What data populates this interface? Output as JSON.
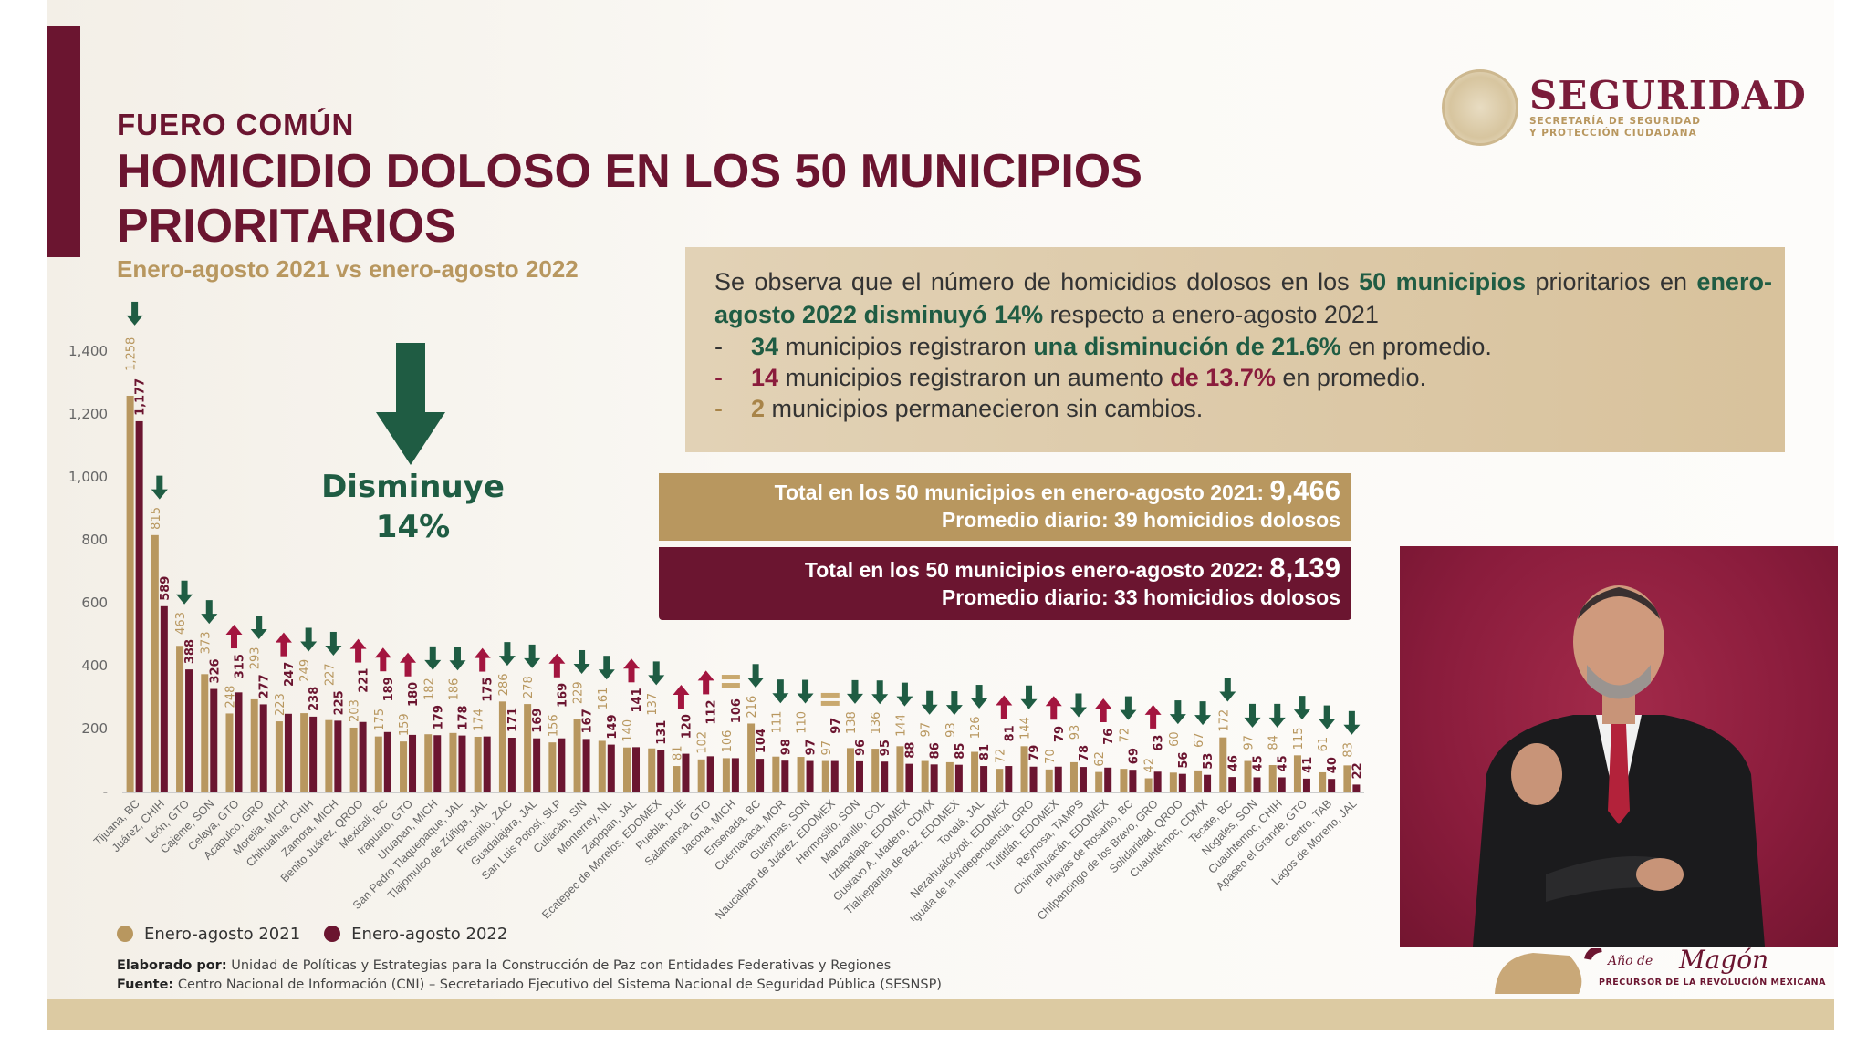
{
  "header": {
    "kicker": "FUERO COMÚN",
    "title": "HOMICIDIO DOLOSO EN LOS 50 MUNICIPIOS PRIORITARIOS",
    "subtitle": "Enero-agosto 2021 vs enero-agosto 2022"
  },
  "logo": {
    "name": "SEGURIDAD",
    "sub1": "SECRETARÍA DE SEGURIDAD",
    "sub2": "Y PROTECCIÓN CIUDADANA"
  },
  "summary": {
    "p1": "Se observa que el número de homicidios dolosos en los",
    "p1b": "50 municipios",
    "p2": "prioritarios en",
    "p2b": "enero-agosto 2022",
    "p2c": "disminuyó 14%",
    "p2d": "respecto a enero-agosto 2021",
    "items": [
      {
        "num": "34",
        "text": "municipios registraron",
        "hl": "una disminución de 21.6%",
        "tail": "en promedio."
      },
      {
        "num": "14",
        "text": "municipios registraron un aumento",
        "hl": "de 13.7%",
        "tail": "en promedio."
      },
      {
        "num": "2",
        "text": "municipios permanecieron sin cambios.",
        "hl": "",
        "tail": ""
      }
    ],
    "dash": "-"
  },
  "totals": {
    "t2021_label": "Total en los 50 municipios en enero-agosto 2021:",
    "t2021_value": "9,466",
    "t2021_daily": "Promedio diario: 39 homicidios dolosos",
    "t2022_label": "Total en los 50 municipios enero-agosto 2022:",
    "t2022_value": "8,139",
    "t2022_daily": "Promedio diario: 33 homicidios dolosos"
  },
  "callout": {
    "label": "Disminuye",
    "value": "14%"
  },
  "colors": {
    "y2021": "#b8975f",
    "y2022": "#6b1530",
    "down": "#1f5c43",
    "up": "#a3153f",
    "equal": "#c9a96e"
  },
  "chart_data": {
    "type": "bar",
    "ylim": [
      0,
      1400
    ],
    "yticks": [
      "-",
      "200",
      "400",
      "600",
      "800",
      "1,000",
      "1,200",
      "1,400"
    ],
    "categories": [
      "Tijuana, BC",
      "Juárez, CHIH",
      "León, GTO",
      "Cajeme, SON",
      "Celaya, GTO",
      "Acapulco, GRO",
      "Morelia, MICH",
      "Chihuahua, CHIH",
      "Zamora, MICH",
      "Benito Juárez, QROO",
      "Mexicali, BC",
      "Irapuato, GTO",
      "Uruapan, MICH",
      "San Pedro Tlaquepaque, JAL",
      "Tlajomulco de Zúñiga, JAL",
      "Fresnillo, ZAC",
      "Guadalajara, JAL",
      "San Luis Potosí, SLP",
      "Culiacán, SIN",
      "Monterrey, NL",
      "Zapopan, JAL",
      "Ecatepec de Morelos, EDOMEX",
      "Puebla, PUE",
      "Salamanca, GTO",
      "Jacona, MICH",
      "Ensenada, BC",
      "Cuernavaca, MOR",
      "Guaymas, SON",
      "Naucalpan de Juárez, EDOMEX",
      "Hermosillo, SON",
      "Manzanillo, COL",
      "Iztapalapa, EDOMEX",
      "Gustavo A. Madero, CDMX",
      "Tlalnepantla de Baz, EDOMEX",
      "Tonalá, JAL",
      "Nezahualcóyotl, EDOMEX",
      "Iguala de la Independencia, GRO",
      "Tultitlán, EDOMEX",
      "Reynosa, TAMPS",
      "Chimalhuacán, EDOMEX",
      "Playas de Rosarito, BC",
      "Chilpancingo de los Bravo, GRO",
      "Solidaridad, QROO",
      "Cuauhtémoc, CDMX",
      "Tecate, BC",
      "Nogales, SON",
      "Cuauhtémoc, CHIH",
      "Apaseo el Grande, GTO",
      "Centro, TAB",
      "Lagos de Moreno, JAL"
    ],
    "series": [
      {
        "name": "Enero-agosto 2021",
        "values": [
          1258,
          815,
          463,
          373,
          248,
          293,
          223,
          249,
          227,
          203,
          175,
          159,
          182,
          186,
          174,
          286,
          278,
          156,
          229,
          161,
          140,
          137,
          81,
          102,
          106,
          216,
          111,
          110,
          97,
          138,
          136,
          144,
          97,
          93,
          126,
          72,
          144,
          70,
          93,
          62,
          72,
          42,
          60,
          67,
          172,
          97,
          84,
          115,
          61,
          83
        ],
        "labels": [
          "1,258",
          "815",
          "463",
          "373",
          "248",
          "293",
          "223",
          "249",
          "227",
          "203",
          "175",
          "159",
          "182",
          "186",
          "174",
          "286",
          "278",
          "156",
          "229",
          "161",
          "140",
          "137",
          "81",
          "102",
          "106",
          "216",
          "111",
          "110",
          "97",
          "138",
          "136",
          "144",
          "97",
          "93",
          "126",
          "72",
          "144",
          "70",
          "93",
          "62",
          "72",
          "42",
          "60",
          "67",
          "172",
          "97",
          "84",
          "115",
          "61",
          "83"
        ]
      },
      {
        "name": "Enero-agosto 2022",
        "values": [
          1177,
          589,
          388,
          326,
          315,
          277,
          247,
          238,
          225,
          221,
          189,
          180,
          179,
          178,
          175,
          171,
          169,
          169,
          167,
          149,
          141,
          131,
          120,
          112,
          106,
          104,
          98,
          97,
          97,
          96,
          95,
          88,
          86,
          85,
          81,
          81,
          79,
          79,
          78,
          76,
          69,
          63,
          56,
          53,
          46,
          45,
          45,
          41,
          40,
          22
        ],
        "labels": [
          "1,177",
          "589",
          "388",
          "326",
          "315",
          "277",
          "247",
          "238",
          "225",
          "221",
          "189",
          "180",
          "179",
          "178",
          "175",
          "171",
          "169",
          "169",
          "167",
          "149",
          "141",
          "131",
          "120",
          "112",
          "106",
          "104",
          "98",
          "97",
          "97",
          "96",
          "95",
          "88",
          "86",
          "85",
          "81",
          "81",
          "79",
          "79",
          "78",
          "76",
          "69",
          "63",
          "56",
          "53",
          "46",
          "45",
          "45",
          "41",
          "40",
          "22"
        ]
      }
    ],
    "legend": "bottom-left",
    "grid": false
  },
  "footer": {
    "made_label": "Elaborado por:",
    "made_text": "Unidad de Políticas y Estrategias para la Construcción de Paz con Entidades Federativas y Regiones",
    "source_label": "Fuente:",
    "source_text": "Centro Nacional de Información (CNI) – Secretariado Ejecutivo del Sistema Nacional de Seguridad Pública (SESNSP)"
  },
  "banner": {
    "year": "Año de",
    "name": "Magón",
    "sub": "PRECURSOR DE LA REVOLUCIÓN MEXICANA"
  }
}
